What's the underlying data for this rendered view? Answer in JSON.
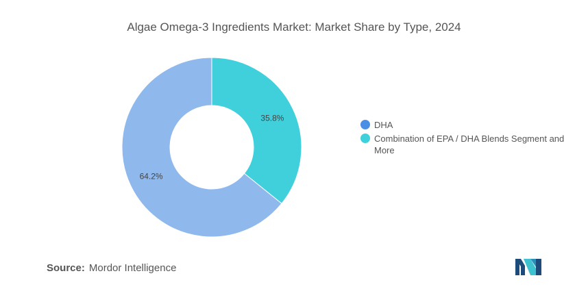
{
  "title": "Algae Omega-3 Ingredients Market: Market Share by Type, 2024",
  "chart_data": {
    "type": "pie",
    "variant": "donut",
    "title": "Algae Omega-3 Ingredients Market: Market Share by Type, 2024",
    "series": [
      {
        "name": "DHA",
        "value": 64.2,
        "label": "64.2%",
        "color": "#8FB8EC"
      },
      {
        "name": "Combination of EPA / DHA Blends Segment and More",
        "value": 35.8,
        "label": "35.8%",
        "color": "#3FD0DC"
      }
    ],
    "legend": [
      {
        "label": "DHA",
        "color": "#4A8FE3"
      },
      {
        "label": "Combination of EPA / DHA Blends Segment and More",
        "color": "#3FD0DC"
      }
    ],
    "legend_position": "right"
  },
  "source": {
    "label": "Source:",
    "value": "Mordor Intelligence"
  },
  "logo": {
    "name": "mordor-intelligence-logo",
    "colors": [
      "#1E4C7A",
      "#3FC2D0"
    ]
  }
}
